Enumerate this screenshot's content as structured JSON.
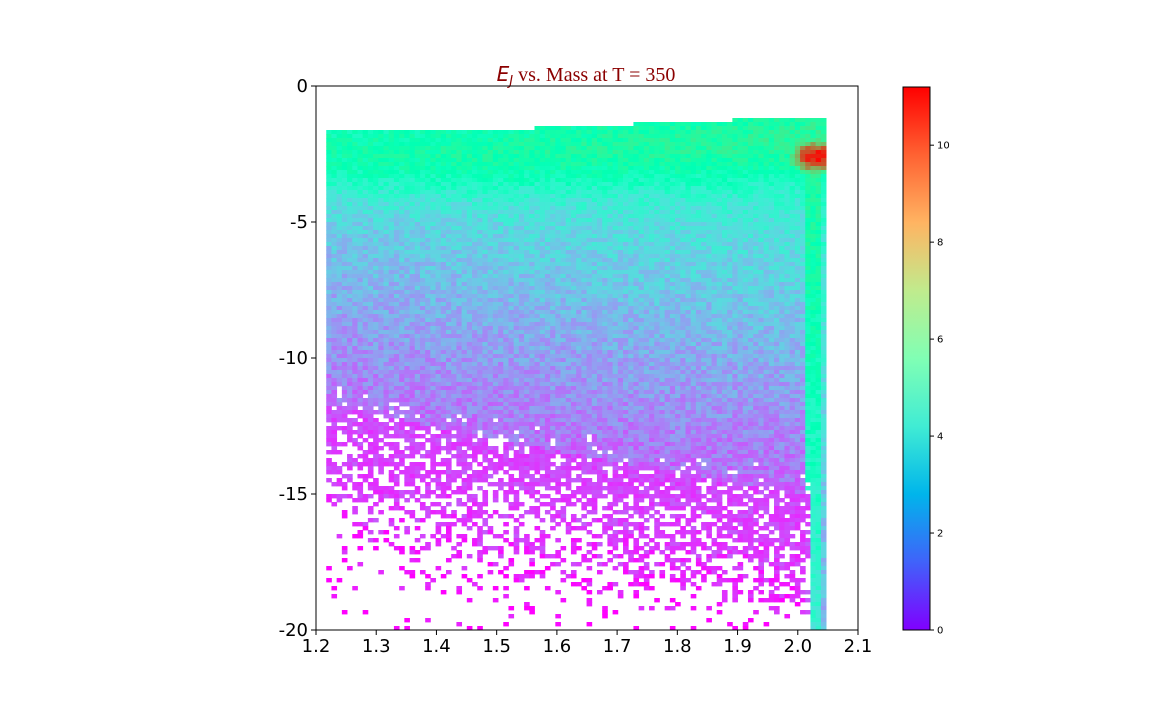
{
  "chart_data": {
    "type": "heatmap",
    "title": {
      "symbol": "E",
      "subscript": "J",
      "text": " vs. Mass at T = 350",
      "color": "#8b0000"
    },
    "xlabel": "",
    "ylabel": "",
    "xlim": [
      1.2,
      2.1
    ],
    "ylim": [
      -20,
      0
    ],
    "x_ticks": [
      1.2,
      1.3,
      1.4,
      1.5,
      1.6,
      1.7,
      1.8,
      1.9,
      2.0,
      2.1
    ],
    "x_tick_labels": [
      "1.2",
      "1.3",
      "1.4",
      "1.5",
      "1.6",
      "1.7",
      "1.8",
      "1.9",
      "2.0",
      "2.1"
    ],
    "y_ticks": [
      0,
      -5,
      -10,
      -15,
      -20
    ],
    "y_tick_labels": [
      "0",
      "-5",
      "-10",
      "-15",
      "-20"
    ],
    "colormap": "rainbow",
    "colorbar": {
      "range": [
        0,
        11.2
      ],
      "ticks": [
        0,
        2,
        4,
        6,
        8,
        10
      ],
      "tick_labels": [
        "0",
        "2",
        "4",
        "6",
        "8",
        "10"
      ]
    },
    "data_extent": {
      "x_range": [
        1.217,
        2.047
      ],
      "top_y_by_x": [
        [
          1.217,
          -1.6
        ],
        [
          1.5,
          -1.6
        ],
        [
          1.95,
          -1.2
        ],
        [
          2.047,
          -1.1
        ]
      ],
      "bottom_y_sparse": -20,
      "note_values": "log-scaled count density; dense region top, sparse below y≈-12"
    },
    "features": [
      {
        "x": 2.03,
        "y": -2.6,
        "value": 11.2
      },
      {
        "x": 1.7,
        "y": -2.5,
        "value": 6.5
      },
      {
        "x": 1.4,
        "y": -5,
        "value": 3.5
      },
      {
        "x": 1.4,
        "y": -10,
        "value": 1.5
      },
      {
        "x": 2.035,
        "y": -10,
        "value": 6.5
      },
      {
        "x": 2.035,
        "y": -16,
        "value": 4
      }
    ]
  }
}
